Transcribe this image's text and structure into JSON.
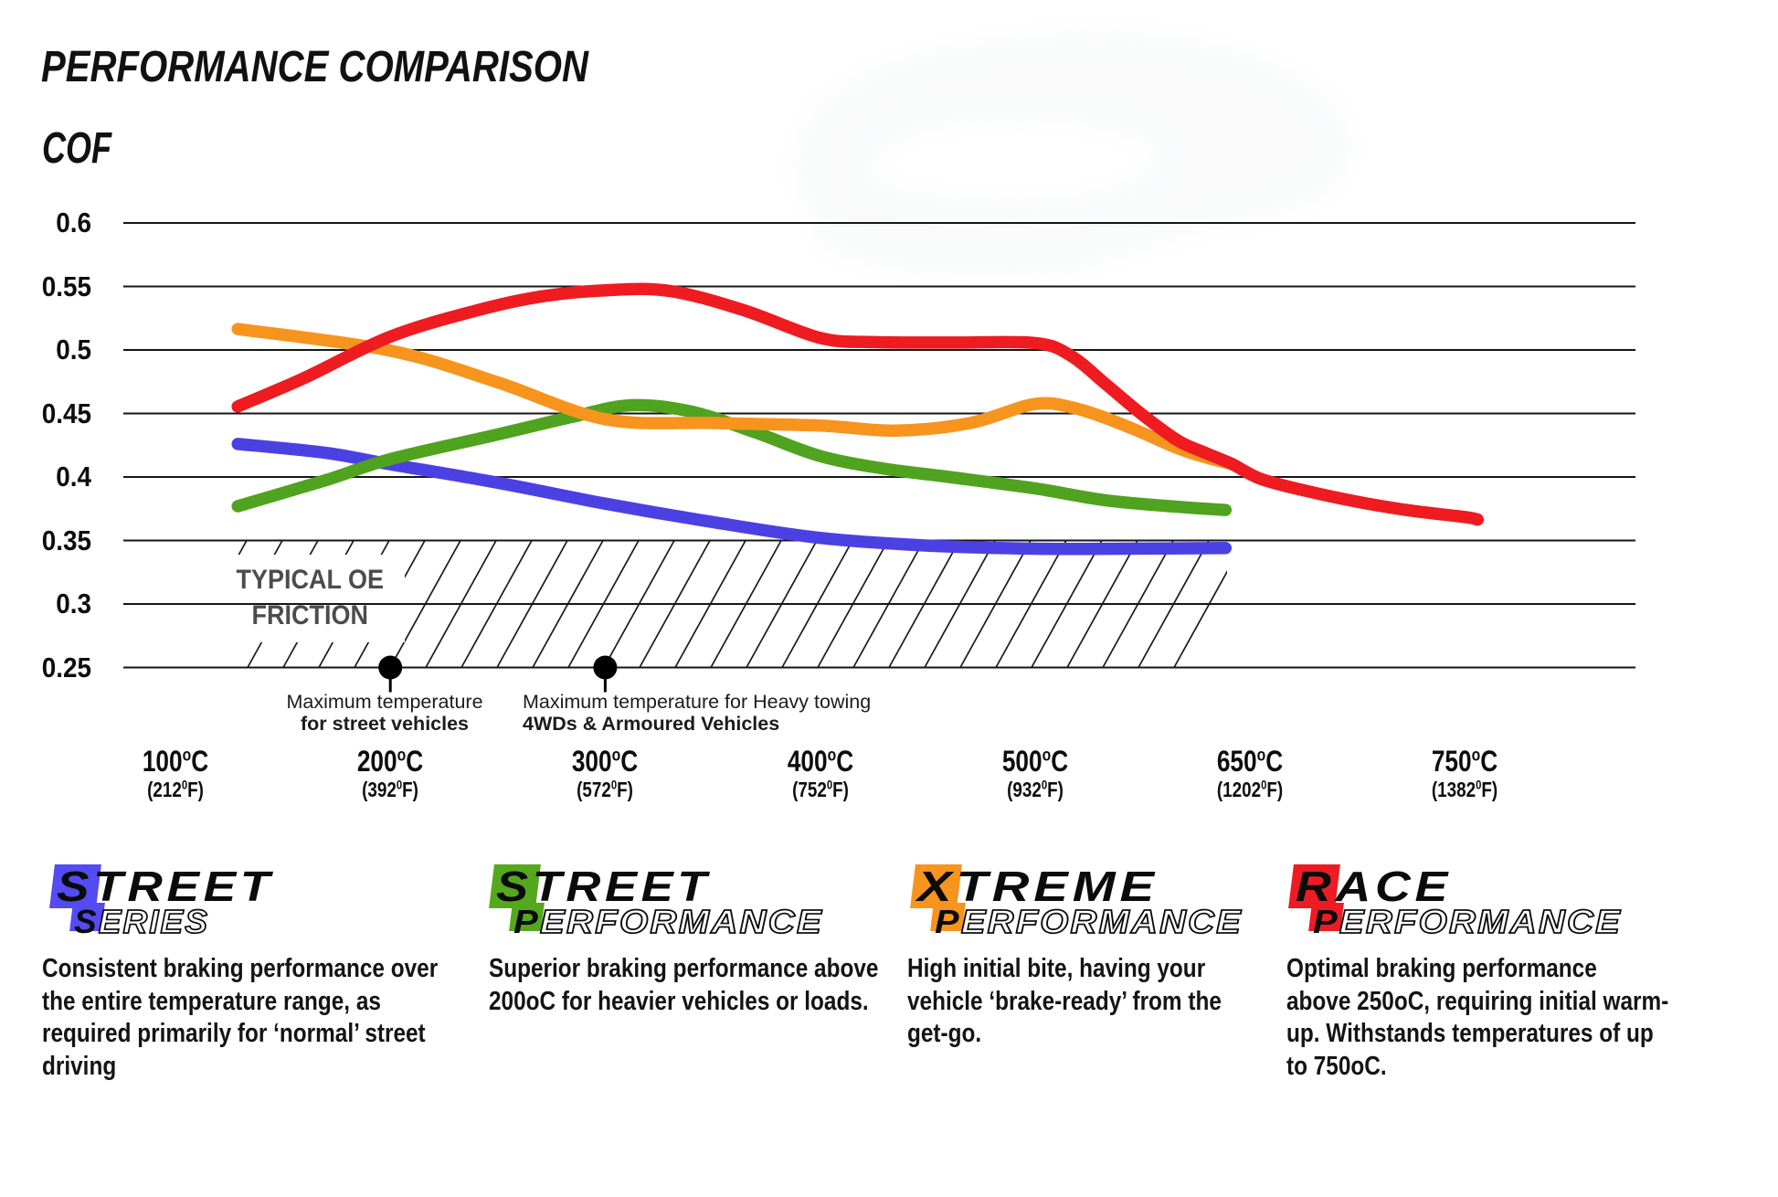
{
  "chart_data": {
    "type": "line",
    "title": "PERFORMANCE COMPARISON",
    "ylabel": "COF",
    "ylim": [
      0.25,
      0.6
    ],
    "grid": true,
    "legend_position": "bottom",
    "y_ticks": [
      "0.6",
      "0.55",
      "0.5",
      "0.45",
      "0.4",
      "0.35",
      "0.3",
      "0.25"
    ],
    "x_tick_temps_c": [
      100,
      200,
      300,
      400,
      500,
      650,
      750
    ],
    "x_ticks": [
      {
        "celsius": "100",
        "fahrenheit": "212"
      },
      {
        "celsius": "200",
        "fahrenheit": "392"
      },
      {
        "celsius": "300",
        "fahrenheit": "572"
      },
      {
        "celsius": "400",
        "fahrenheit": "752"
      },
      {
        "celsius": "500",
        "fahrenheit": "932"
      },
      {
        "celsius": "650",
        "fahrenheit": "1202"
      },
      {
        "celsius": "750",
        "fahrenheit": "1382"
      }
    ],
    "units": {
      "c": "C",
      "f": "F",
      "deg_c": "o",
      "deg_f": "0"
    },
    "oe_band": {
      "label_line1": "TYPICAL OE",
      "label_line2": "FRICTION",
      "cof_min": 0.25,
      "cof_max": 0.35
    },
    "markers": [
      {
        "temp_c": 200,
        "cof": 0.25,
        "line1": "Maximum temperature",
        "line2": "for street vehicles"
      },
      {
        "temp_c": 300,
        "cof": 0.25,
        "line1": "Maximum temperature for Heavy towing",
        "line2": "4WDs & Armoured Vehicles"
      }
    ],
    "series": [
      {
        "name": "Street Series",
        "color": "#4B41E3",
        "points": [
          [
            129,
            0.426
          ],
          [
            170,
            0.419
          ],
          [
            200,
            0.41
          ],
          [
            250,
            0.3955
          ],
          [
            300,
            0.379
          ],
          [
            350,
            0.3645
          ],
          [
            400,
            0.352
          ],
          [
            450,
            0.346
          ],
          [
            500,
            0.3435
          ],
          [
            560,
            0.3435
          ],
          [
            633,
            0.344
          ]
        ]
      },
      {
        "name": "Street Performance",
        "color": "#4FA31E",
        "points": [
          [
            129,
            0.377
          ],
          [
            170,
            0.3975
          ],
          [
            200,
            0.414
          ],
          [
            250,
            0.4335
          ],
          [
            285,
            0.4475
          ],
          [
            312,
            0.4565
          ],
          [
            340,
            0.4515
          ],
          [
            370,
            0.435
          ],
          [
            400,
            0.4165
          ],
          [
            430,
            0.4065
          ],
          [
            460,
            0.4
          ],
          [
            500,
            0.391
          ],
          [
            550,
            0.3815
          ],
          [
            600,
            0.3765
          ],
          [
            633,
            0.374
          ]
        ]
      },
      {
        "name": "Xtreme Performance",
        "color": "#F7941E",
        "points": [
          [
            129,
            0.5165
          ],
          [
            200,
            0.4995
          ],
          [
            250,
            0.4745
          ],
          [
            300,
            0.4455
          ],
          [
            350,
            0.4425
          ],
          [
            400,
            0.4405
          ],
          [
            435,
            0.4365
          ],
          [
            470,
            0.4425
          ],
          [
            500,
            0.4575
          ],
          [
            530,
            0.4535
          ],
          [
            565,
            0.4395
          ],
          [
            600,
            0.4225
          ],
          [
            622,
            0.4145
          ],
          [
            637,
            0.4105
          ]
        ]
      },
      {
        "name": "Race Performance",
        "color": "#EE1B20",
        "points": [
          [
            129,
            0.4555
          ],
          [
            160,
            0.478
          ],
          [
            200,
            0.5105
          ],
          [
            240,
            0.531
          ],
          [
            270,
            0.542
          ],
          [
            300,
            0.547
          ],
          [
            330,
            0.5465
          ],
          [
            365,
            0.531
          ],
          [
            400,
            0.5095
          ],
          [
            425,
            0.5062
          ],
          [
            460,
            0.5058
          ],
          [
            500,
            0.5055
          ],
          [
            525,
            0.4955
          ],
          [
            550,
            0.4725
          ],
          [
            575,
            0.449
          ],
          [
            600,
            0.4285
          ],
          [
            620,
            0.4185
          ],
          [
            637,
            0.4105
          ],
          [
            655,
            0.3985
          ],
          [
            675,
            0.3895
          ],
          [
            700,
            0.3805
          ],
          [
            725,
            0.3735
          ],
          [
            750,
            0.3685
          ],
          [
            756,
            0.3665
          ]
        ]
      }
    ]
  },
  "legend": {
    "items": [
      {
        "brand_top": "STREET",
        "brand_bottom_first": "S",
        "brand_bottom_rest": "ERIES",
        "color": "#544BF2",
        "description": "Consistent braking performance over\nthe entire temperature range, as\nrequired primarily for ‘normal’ street\ndriving"
      },
      {
        "brand_top": "STREET",
        "brand_bottom_first": "P",
        "brand_bottom_rest": "ERFORMANCE",
        "color": "#55A81E",
        "description": "Superior braking performance above\n200oC for heavier vehicles or loads."
      },
      {
        "brand_top": "XTREME",
        "brand_bottom_first": "P",
        "brand_bottom_rest": "ERFORMANCE",
        "color": "#F7941E",
        "description": "High initial bite, having your\nvehicle ‘brake-ready’ from the\nget-go."
      },
      {
        "brand_top": "RACE",
        "brand_bottom_first": "P",
        "brand_bottom_rest": "ERFORMANCE",
        "color": "#ED1C24",
        "description": "Optimal braking performance\nabove 250oC, requiring initial warm-\nup. Withstands temperatures of up\nto 750oC."
      }
    ]
  }
}
